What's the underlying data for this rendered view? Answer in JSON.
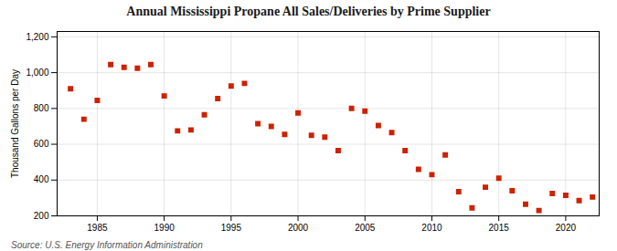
{
  "chart_data": {
    "type": "scatter",
    "title": "Annual Mississippi Propane All Sales/Deliveries by Prime Supplier",
    "ylabel": "Thousand Gallons per Day",
    "source": "Source: U.S. Energy Information Administration",
    "x": [
      1983,
      1984,
      1985,
      1986,
      1987,
      1988,
      1989,
      1990,
      1991,
      1992,
      1993,
      1994,
      1995,
      1996,
      1997,
      1998,
      1999,
      2000,
      2001,
      2002,
      2003,
      2004,
      2005,
      2006,
      2007,
      2008,
      2009,
      2010,
      2011,
      2012,
      2013,
      2014,
      2015,
      2016,
      2017,
      2018,
      2019,
      2020,
      2021,
      2022
    ],
    "values": [
      910,
      740,
      845,
      1045,
      1030,
      1025,
      1045,
      870,
      675,
      680,
      765,
      855,
      925,
      940,
      715,
      700,
      655,
      775,
      650,
      640,
      565,
      800,
      785,
      705,
      665,
      565,
      460,
      430,
      540,
      335,
      245,
      360,
      410,
      340,
      265,
      230,
      325,
      315,
      285,
      305
    ],
    "color": "#cc2200",
    "marker": "square",
    "xlim": [
      1982,
      2022.5
    ],
    "ylim": [
      200,
      1230
    ],
    "xticks": [
      1985,
      1990,
      1995,
      2000,
      2005,
      2010,
      2015,
      2020
    ],
    "yticks": [
      200,
      400,
      600,
      800,
      {
        "value": 1000,
        "label": "1,000"
      },
      {
        "value": 1200,
        "label": "1,200"
      }
    ],
    "grid": true
  }
}
